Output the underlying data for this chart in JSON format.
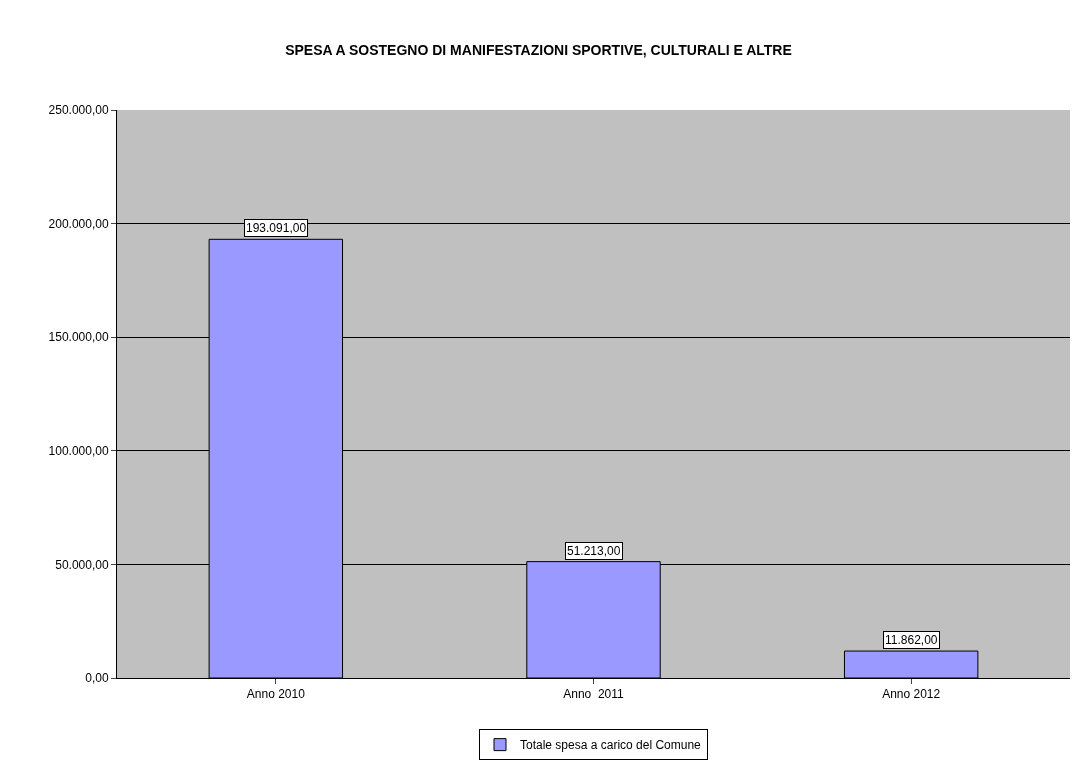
{
  "chart_data": {
    "type": "bar",
    "title": "SPESA A SOSTEGNO DI MANIFESTAZIONI SPORTIVE, CULTURALI E ALTRE",
    "categories": [
      "Anno 2010",
      "Anno  2011",
      "Anno 2012"
    ],
    "series": [
      {
        "name": "Totale spesa a carico del Comune",
        "color": "#9999ff",
        "values": [
          193091,
          51213,
          11862
        ]
      }
    ],
    "value_labels": [
      "193.091,00",
      "51.213,00",
      "11.862,00"
    ],
    "ylim": [
      0,
      250000
    ],
    "yticks": [
      {
        "value": 0,
        "label": "0,00"
      },
      {
        "value": 50000,
        "label": "50.000,00"
      },
      {
        "value": 100000,
        "label": "100.000,00"
      },
      {
        "value": 150000,
        "label": "150.000,00"
      },
      {
        "value": 200000,
        "label": "200.000,00"
      },
      {
        "value": 250000,
        "label": "250.000,00"
      }
    ],
    "grid": "y",
    "legend": "bottom"
  }
}
